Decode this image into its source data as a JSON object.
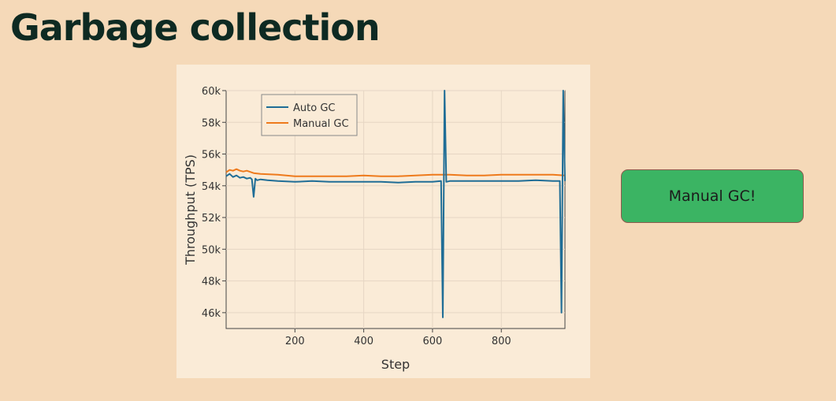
{
  "slide": {
    "title": "Garbage collection"
  },
  "callout": {
    "label": "Manual GC!"
  },
  "colors": {
    "background": "#f5d9b8",
    "chart_bg": "#faebd7",
    "auto_gc": "#1f6d96",
    "manual_gc": "#ee7a1c",
    "callout": "#3bb463"
  },
  "chart_data": {
    "type": "line",
    "title": "",
    "xlabel": "Step",
    "ylabel": "Throughput (TPS)",
    "xlim": [
      0,
      985
    ],
    "ylim": [
      45000,
      60000
    ],
    "xticks": [
      200,
      400,
      600,
      800
    ],
    "xtick_labels": [
      "200",
      "400",
      "600",
      "800"
    ],
    "yticks": [
      46000,
      48000,
      50000,
      52000,
      54000,
      56000,
      58000,
      60000
    ],
    "ytick_labels": [
      "46k",
      "48k",
      "50k",
      "52k",
      "54k",
      "56k",
      "58k",
      "60k"
    ],
    "grid": true,
    "legend": "top-left",
    "series": [
      {
        "name": "Auto GC",
        "color": "#1f6d96",
        "x": [
          0,
          10,
          20,
          30,
          40,
          50,
          60,
          70,
          75,
          80,
          85,
          90,
          100,
          120,
          150,
          200,
          250,
          300,
          350,
          400,
          450,
          500,
          550,
          600,
          625,
          630,
          635,
          640,
          650,
          700,
          750,
          800,
          850,
          900,
          950,
          970,
          975,
          980,
          985
        ],
        "y": [
          54600,
          54750,
          54550,
          54650,
          54500,
          54550,
          54450,
          54500,
          54400,
          53300,
          54450,
          54350,
          54400,
          54350,
          54300,
          54250,
          54300,
          54250,
          54250,
          54250,
          54250,
          54200,
          54250,
          54250,
          54300,
          45700,
          60000,
          54250,
          54300,
          54300,
          54300,
          54300,
          54300,
          54350,
          54300,
          54300,
          46000,
          60000,
          54300
        ]
      },
      {
        "name": "Manual GC",
        "color": "#ee7a1c",
        "x": [
          0,
          10,
          20,
          30,
          40,
          50,
          60,
          80,
          100,
          150,
          200,
          250,
          300,
          350,
          400,
          450,
          500,
          550,
          600,
          650,
          700,
          750,
          800,
          850,
          900,
          950,
          985
        ],
        "y": [
          54850,
          55000,
          54950,
          55050,
          54950,
          54900,
          54950,
          54800,
          54750,
          54700,
          54600,
          54600,
          54600,
          54600,
          54650,
          54600,
          54600,
          54650,
          54700,
          54700,
          54650,
          54650,
          54700,
          54700,
          54700,
          54700,
          54650
        ]
      }
    ]
  }
}
